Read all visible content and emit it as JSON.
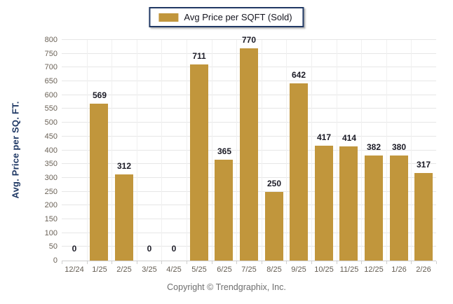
{
  "legend": {
    "label": "Avg Price per SQFT (Sold)",
    "swatch_color": "#C1963C"
  },
  "footer": {
    "copyright": "Copyright © Trendgraphix, Inc."
  },
  "colors": {
    "bar": "#C1963C",
    "legend_border": "#203864",
    "axis_title": "#1F3864",
    "gridline": "#e6e6e6",
    "value_label": "#1b1b26"
  },
  "chart_data": {
    "type": "bar",
    "title": "",
    "xlabel": "",
    "ylabel": "Avg. Price per SQ. FT.",
    "categories": [
      "12/24",
      "1/25",
      "2/25",
      "3/25",
      "4/25",
      "5/25",
      "6/25",
      "7/25",
      "8/25",
      "9/25",
      "10/25",
      "11/25",
      "12/25",
      "1/26",
      "2/26"
    ],
    "values": [
      0,
      569,
      312,
      0,
      0,
      711,
      365,
      770,
      250,
      642,
      417,
      414,
      382,
      380,
      317
    ],
    "series": [
      {
        "name": "Avg Price per SQFT (Sold)",
        "values": [
          0,
          569,
          312,
          0,
          0,
          711,
          365,
          770,
          250,
          642,
          417,
          414,
          382,
          380,
          317
        ]
      }
    ],
    "ylim": [
      0,
      800
    ],
    "yticks": [
      0,
      50,
      100,
      150,
      200,
      250,
      300,
      350,
      400,
      450,
      500,
      550,
      600,
      650,
      700,
      750,
      800
    ],
    "grid": true,
    "legend_position": "top-center",
    "data_labels": true
  }
}
